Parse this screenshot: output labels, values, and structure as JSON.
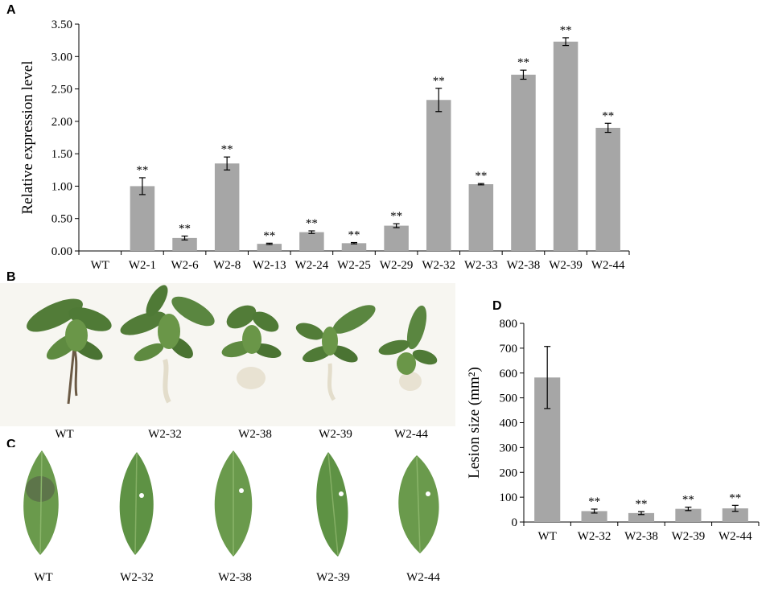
{
  "panels": {
    "a": "A",
    "b": "B",
    "c": "C",
    "d": "D"
  },
  "colors": {
    "bar": "#a6a6a6",
    "bar_stroke": "#8c8c8c",
    "leaf_dark": "#4f7a36",
    "leaf_light": "#76a154",
    "root": "#e6e0cf",
    "lesion": "#5a6e4a"
  },
  "chart_data": [
    {
      "type": "bar",
      "panel": "A",
      "categories": [
        "WT",
        "W2-1",
        "W2-6",
        "W2-8",
        "W2-13",
        "W2-24",
        "W2-25",
        "W2-29",
        "W2-32",
        "W2-33",
        "W2-38",
        "W2-39",
        "W2-44"
      ],
      "values": [
        0.0,
        1.0,
        0.2,
        1.35,
        0.11,
        0.29,
        0.12,
        0.39,
        2.33,
        1.03,
        2.72,
        3.23,
        1.9
      ],
      "errors": [
        0.0,
        0.13,
        0.03,
        0.1,
        0.01,
        0.02,
        0.01,
        0.03,
        0.18,
        0.01,
        0.07,
        0.06,
        0.07
      ],
      "significance": [
        "",
        "**",
        "**",
        "**",
        "**",
        "**",
        "**",
        "**",
        "**",
        "**",
        "**",
        "**",
        "**"
      ],
      "ylabel": "Relative expression level",
      "xlabel": "",
      "ylim": [
        0,
        3.5
      ],
      "yticks": [
        "0.00",
        "0.50",
        "1.00",
        "1.50",
        "2.00",
        "2.50",
        "3.00",
        "3.50"
      ],
      "ytick_values": [
        0,
        0.5,
        1.0,
        1.5,
        2.0,
        2.5,
        3.0,
        3.5
      ],
      "grid": false
    },
    {
      "type": "bar",
      "panel": "D",
      "categories": [
        "WT",
        "W2-32",
        "W2-38",
        "W2-39",
        "W2-44"
      ],
      "values": [
        582,
        44,
        36,
        53,
        55
      ],
      "errors": [
        125,
        8,
        6,
        7,
        12
      ],
      "significance": [
        "",
        "**",
        "**",
        "**",
        "**"
      ],
      "ylabel": "Lesion size (mm²)",
      "xlabel": "",
      "ylim": [
        0,
        800
      ],
      "yticks": [
        "0",
        "100",
        "200",
        "300",
        "400",
        "500",
        "600",
        "700",
        "800"
      ],
      "ytick_values": [
        0,
        100,
        200,
        300,
        400,
        500,
        600,
        700,
        800
      ],
      "grid": false
    }
  ],
  "photos": {
    "b_labels": [
      "WT",
      "W2-32",
      "W2-38",
      "W2-39",
      "W2-44"
    ],
    "c_labels": [
      "WT",
      "W2-32",
      "W2-38",
      "W2-39",
      "W2-44"
    ]
  }
}
